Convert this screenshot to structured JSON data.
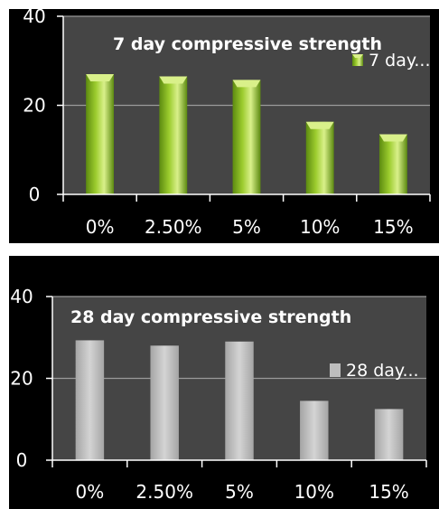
{
  "chart_data": [
    {
      "type": "bar",
      "title": "7 day compressive strength",
      "categories": [
        "0%",
        "2.50%",
        "5%",
        "10%",
        "15%"
      ],
      "series": [
        {
          "name": "7 day...",
          "values": [
            27,
            26.5,
            25.7,
            16.3,
            13.5
          ]
        }
      ],
      "ylim": [
        0,
        40
      ],
      "yticks": [
        "0",
        "20",
        "40"
      ],
      "grid": true,
      "legend": "right",
      "colors": {
        "bar": "#9ccc2e",
        "bar_light": "#d9f08a",
        "bar_dark": "#5c8a10",
        "plot_bg": "#454545",
        "grid": "#9a9a9a"
      }
    },
    {
      "type": "bar",
      "title": "28 day compressive strength",
      "categories": [
        "0%",
        "2.50%",
        "5%",
        "10%",
        "15%"
      ],
      "series": [
        {
          "name": "28 day...",
          "values": [
            29.3,
            28,
            29,
            14.5,
            12.5
          ]
        }
      ],
      "ylim": [
        0,
        40
      ],
      "yticks": [
        "0",
        "20",
        "40"
      ],
      "grid": true,
      "legend": "right",
      "colors": {
        "bar": "#bdbdbd",
        "bar_light": "#d4d4d4",
        "bar_dark": "#a5a5a5",
        "plot_bg": "#454545",
        "grid": "#9a9a9a"
      }
    }
  ]
}
